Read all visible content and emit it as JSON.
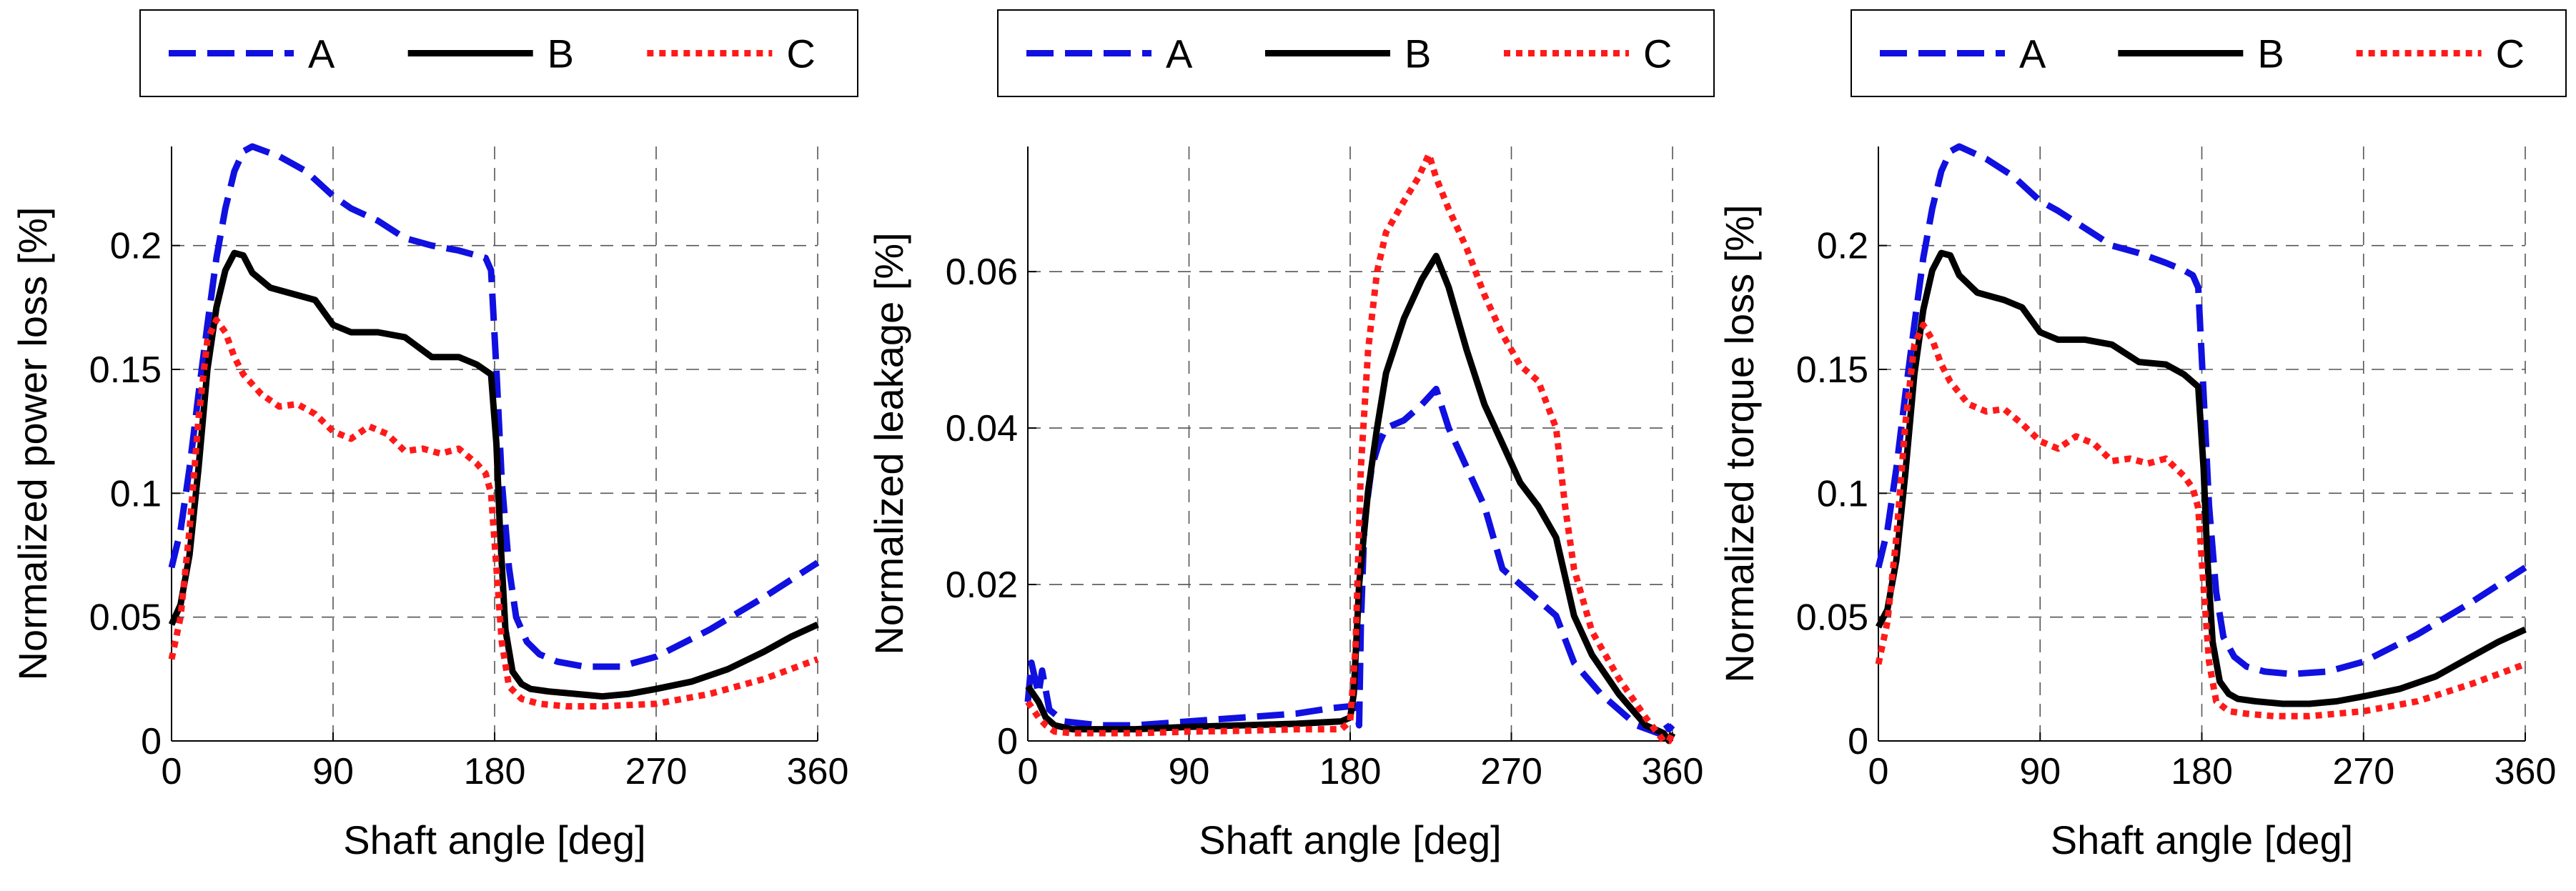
{
  "figure": {
    "panel_count": 3
  },
  "chart_data": [
    {
      "type": "line",
      "title": "",
      "xlabel": "Shaft angle [deg]",
      "ylabel": "Normalized power loss [%]",
      "xlim": [
        0,
        360
      ],
      "ylim": [
        0,
        0.24
      ],
      "xticks": [
        0,
        90,
        180,
        270,
        360
      ],
      "xtick_labels": [
        "0",
        "90",
        "180",
        "270",
        "360"
      ],
      "yticks": [
        0,
        0.05,
        0.1,
        0.15,
        0.2
      ],
      "ytick_labels": [
        "0",
        "0.05",
        "0.1",
        "0.15",
        "0.2"
      ],
      "grid": true,
      "legend_position": "top",
      "series": [
        {
          "name": "A",
          "color": "#1010e0",
          "style": "dashed",
          "x": [
            0,
            5,
            10,
            15,
            20,
            25,
            30,
            35,
            40,
            45,
            60,
            75,
            90,
            100,
            115,
            130,
            145,
            160,
            170,
            175,
            178,
            181,
            184,
            188,
            192,
            198,
            205,
            215,
            230,
            250,
            270,
            300,
            330,
            360
          ],
          "y": [
            0.07,
            0.085,
            0.11,
            0.14,
            0.168,
            0.195,
            0.215,
            0.23,
            0.238,
            0.24,
            0.236,
            0.23,
            0.22,
            0.215,
            0.21,
            0.203,
            0.2,
            0.198,
            0.196,
            0.195,
            0.19,
            0.15,
            0.105,
            0.07,
            0.05,
            0.04,
            0.035,
            0.032,
            0.03,
            0.03,
            0.034,
            0.045,
            0.058,
            0.072
          ]
        },
        {
          "name": "B",
          "color": "#000000",
          "style": "solid",
          "x": [
            0,
            5,
            10,
            15,
            20,
            25,
            30,
            35,
            40,
            45,
            55,
            70,
            80,
            90,
            100,
            115,
            130,
            145,
            160,
            170,
            178,
            181,
            183,
            186,
            190,
            195,
            200,
            210,
            225,
            240,
            255,
            270,
            290,
            310,
            330,
            345,
            360
          ],
          "y": [
            0.047,
            0.055,
            0.075,
            0.11,
            0.15,
            0.175,
            0.19,
            0.197,
            0.196,
            0.189,
            0.183,
            0.18,
            0.178,
            0.168,
            0.165,
            0.165,
            0.163,
            0.155,
            0.155,
            0.152,
            0.148,
            0.12,
            0.085,
            0.045,
            0.028,
            0.023,
            0.021,
            0.02,
            0.019,
            0.018,
            0.019,
            0.021,
            0.024,
            0.029,
            0.036,
            0.042,
            0.047
          ]
        },
        {
          "name": "C",
          "color": "#ff1a1a",
          "style": "dotted",
          "x": [
            0,
            5,
            10,
            15,
            20,
            25,
            30,
            35,
            40,
            50,
            60,
            70,
            80,
            90,
            100,
            110,
            120,
            130,
            140,
            150,
            160,
            170,
            175,
            178,
            181,
            184,
            188,
            195,
            205,
            220,
            240,
            270,
            300,
            330,
            360
          ],
          "y": [
            0.033,
            0.05,
            0.085,
            0.13,
            0.162,
            0.17,
            0.165,
            0.155,
            0.148,
            0.14,
            0.135,
            0.136,
            0.132,
            0.125,
            0.122,
            0.127,
            0.124,
            0.117,
            0.118,
            0.116,
            0.118,
            0.112,
            0.108,
            0.1,
            0.07,
            0.04,
            0.022,
            0.017,
            0.015,
            0.014,
            0.014,
            0.015,
            0.019,
            0.025,
            0.033
          ]
        }
      ]
    },
    {
      "type": "line",
      "title": "",
      "xlabel": "Shaft angle [deg]",
      "ylabel": "Normalized leakage [%]",
      "xlim": [
        0,
        360
      ],
      "ylim": [
        0,
        0.076
      ],
      "xticks": [
        0,
        90,
        180,
        270,
        360
      ],
      "xtick_labels": [
        "0",
        "90",
        "180",
        "270",
        "360"
      ],
      "yticks": [
        0,
        0.02,
        0.04,
        0.06
      ],
      "ytick_labels": [
        "0",
        "0.02",
        "0.04",
        "0.06"
      ],
      "grid": true,
      "legend_position": "top",
      "series": [
        {
          "name": "A",
          "color": "#1010e0",
          "style": "dashed",
          "x": [
            0,
            2,
            4,
            6,
            8,
            12,
            20,
            40,
            60,
            90,
            120,
            150,
            170,
            183,
            185,
            186,
            188,
            192,
            196,
            200,
            210,
            220,
            228,
            235,
            245,
            255,
            265,
            280,
            295,
            305,
            320,
            340,
            352,
            355,
            358,
            360
          ],
          "y": [
            0.005,
            0.01,
            0.008,
            0.006,
            0.009,
            0.004,
            0.0025,
            0.002,
            0.002,
            0.0025,
            0.003,
            0.0035,
            0.0042,
            0.0045,
            0.002,
            0.015,
            0.028,
            0.035,
            0.038,
            0.04,
            0.041,
            0.043,
            0.045,
            0.04,
            0.035,
            0.03,
            0.022,
            0.019,
            0.016,
            0.01,
            0.006,
            0.002,
            0.001,
            0.0025,
            0.0015,
            0.002
          ]
        },
        {
          "name": "B",
          "color": "#000000",
          "style": "solid",
          "x": [
            0,
            3,
            6,
            10,
            15,
            25,
            40,
            60,
            90,
            120,
            150,
            175,
            180,
            182,
            185,
            190,
            195,
            200,
            210,
            220,
            228,
            235,
            245,
            255,
            265,
            275,
            285,
            295,
            300,
            305,
            315,
            330,
            345,
            355,
            358,
            360
          ],
          "y": [
            0.007,
            0.006,
            0.005,
            0.003,
            0.002,
            0.0015,
            0.0015,
            0.0015,
            0.0018,
            0.002,
            0.0022,
            0.0025,
            0.003,
            0.006,
            0.02,
            0.032,
            0.04,
            0.047,
            0.054,
            0.059,
            0.062,
            0.058,
            0.05,
            0.043,
            0.038,
            0.033,
            0.03,
            0.026,
            0.021,
            0.016,
            0.011,
            0.006,
            0.002,
            0.001,
            0.0,
            0.001
          ]
        },
        {
          "name": "C",
          "color": "#ff1a1a",
          "style": "dotted",
          "x": [
            0,
            3,
            6,
            10,
            15,
            25,
            40,
            60,
            90,
            120,
            150,
            175,
            180,
            183,
            186,
            190,
            195,
            200,
            210,
            218,
            224,
            228,
            235,
            245,
            255,
            265,
            275,
            285,
            295,
            300,
            305,
            315,
            330,
            345,
            355,
            358,
            360
          ],
          "y": [
            0.005,
            0.004,
            0.003,
            0.002,
            0.0012,
            0.001,
            0.001,
            0.001,
            0.0012,
            0.0013,
            0.0015,
            0.0015,
            0.0025,
            0.012,
            0.035,
            0.05,
            0.06,
            0.065,
            0.069,
            0.072,
            0.075,
            0.072,
            0.068,
            0.063,
            0.057,
            0.052,
            0.048,
            0.046,
            0.04,
            0.03,
            0.022,
            0.014,
            0.008,
            0.003,
            0.0,
            0.0,
            0.001
          ]
        }
      ]
    },
    {
      "type": "line",
      "title": "",
      "xlabel": "Shaft angle [deg]",
      "ylabel": "Normalized torque loss [%]",
      "xlim": [
        0,
        360
      ],
      "ylim": [
        0,
        0.24
      ],
      "xticks": [
        0,
        90,
        180,
        270,
        360
      ],
      "xtick_labels": [
        "0",
        "90",
        "180",
        "270",
        "360"
      ],
      "yticks": [
        0,
        0.05,
        0.1,
        0.15,
        0.2
      ],
      "ytick_labels": [
        "0",
        "0.05",
        "0.1",
        "0.15",
        "0.2"
      ],
      "grid": true,
      "legend_position": "top",
      "series": [
        {
          "name": "A",
          "color": "#1010e0",
          "style": "dashed",
          "x": [
            0,
            5,
            10,
            15,
            20,
            25,
            30,
            35,
            40,
            45,
            60,
            75,
            90,
            100,
            115,
            130,
            145,
            160,
            170,
            175,
            178,
            181,
            184,
            188,
            192,
            198,
            205,
            215,
            230,
            250,
            270,
            300,
            330,
            360
          ],
          "y": [
            0.07,
            0.085,
            0.11,
            0.14,
            0.168,
            0.195,
            0.215,
            0.23,
            0.238,
            0.24,
            0.235,
            0.228,
            0.218,
            0.214,
            0.207,
            0.2,
            0.197,
            0.193,
            0.19,
            0.188,
            0.183,
            0.14,
            0.095,
            0.06,
            0.042,
            0.034,
            0.03,
            0.028,
            0.027,
            0.028,
            0.032,
            0.043,
            0.056,
            0.07
          ]
        },
        {
          "name": "B",
          "color": "#000000",
          "style": "solid",
          "x": [
            0,
            5,
            10,
            15,
            20,
            25,
            30,
            35,
            40,
            45,
            55,
            70,
            80,
            90,
            100,
            115,
            130,
            145,
            160,
            170,
            178,
            181,
            183,
            186,
            190,
            195,
            200,
            210,
            225,
            240,
            255,
            270,
            290,
            310,
            330,
            345,
            360
          ],
          "y": [
            0.046,
            0.053,
            0.073,
            0.108,
            0.148,
            0.174,
            0.19,
            0.197,
            0.196,
            0.188,
            0.181,
            0.178,
            0.175,
            0.165,
            0.162,
            0.162,
            0.16,
            0.153,
            0.152,
            0.148,
            0.143,
            0.11,
            0.075,
            0.04,
            0.024,
            0.019,
            0.017,
            0.016,
            0.015,
            0.015,
            0.016,
            0.018,
            0.021,
            0.026,
            0.034,
            0.04,
            0.045
          ]
        },
        {
          "name": "C",
          "color": "#ff1a1a",
          "style": "dotted",
          "x": [
            0,
            5,
            10,
            15,
            20,
            25,
            30,
            35,
            40,
            50,
            60,
            70,
            80,
            90,
            100,
            110,
            120,
            130,
            140,
            150,
            160,
            170,
            175,
            178,
            181,
            184,
            188,
            195,
            205,
            220,
            240,
            270,
            300,
            330,
            360
          ],
          "y": [
            0.031,
            0.048,
            0.082,
            0.128,
            0.16,
            0.168,
            0.162,
            0.152,
            0.145,
            0.136,
            0.133,
            0.134,
            0.128,
            0.121,
            0.118,
            0.123,
            0.12,
            0.113,
            0.114,
            0.112,
            0.114,
            0.107,
            0.102,
            0.094,
            0.062,
            0.032,
            0.016,
            0.012,
            0.011,
            0.01,
            0.01,
            0.012,
            0.016,
            0.023,
            0.031
          ]
        }
      ]
    }
  ]
}
